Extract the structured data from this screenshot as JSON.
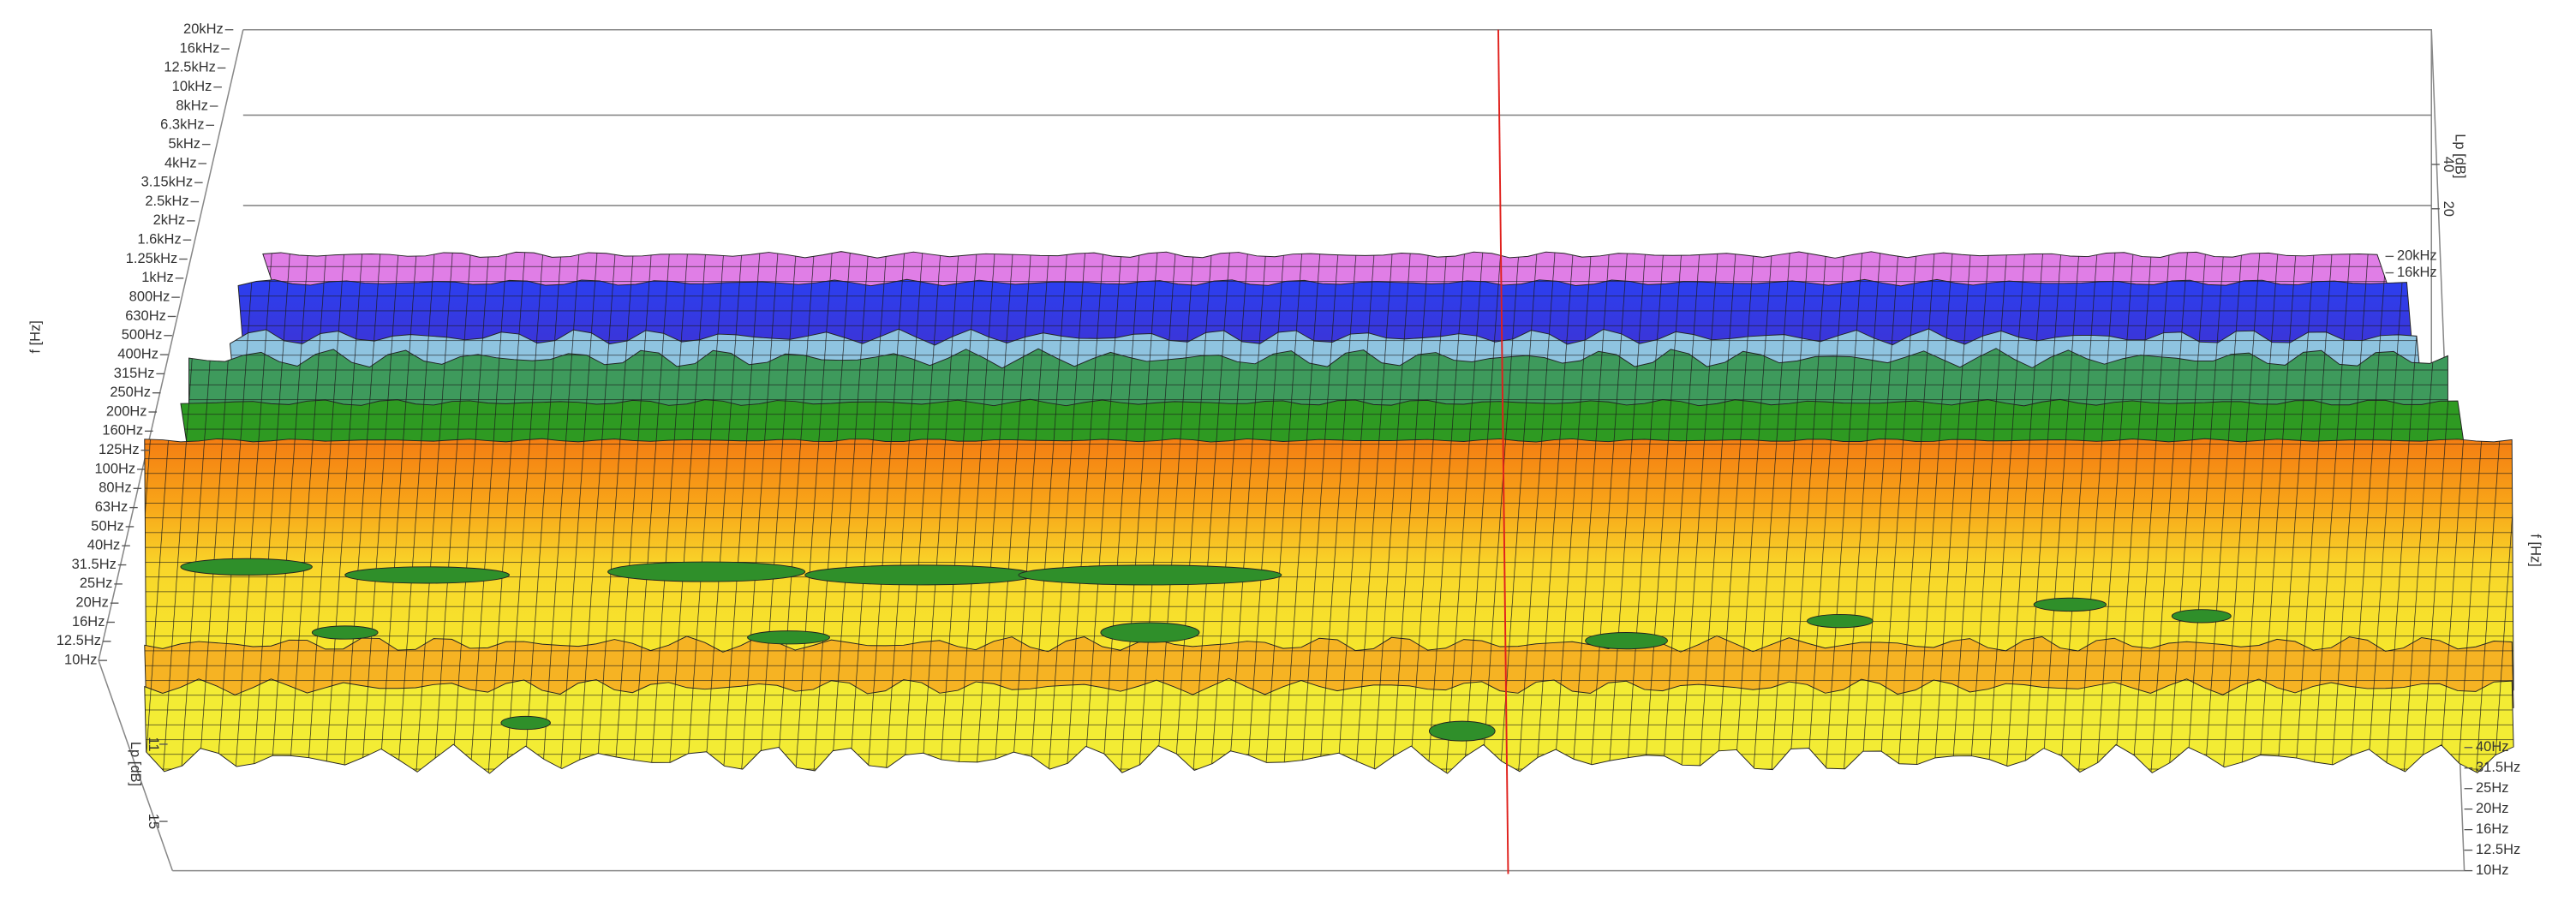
{
  "chart_data": {
    "type": "surface3d",
    "y_label": "f [Hz]",
    "yticks": [
      {
        "value": 20000,
        "label": "20kHz"
      },
      {
        "value": 16000,
        "label": "16kHz"
      },
      {
        "value": 12500,
        "label": "12.5kHz"
      },
      {
        "value": 10000,
        "label": "10kHz"
      },
      {
        "value": 8000,
        "label": "8kHz"
      },
      {
        "value": 6300,
        "label": "6.3kHz"
      },
      {
        "value": 5000,
        "label": "5kHz"
      },
      {
        "value": 4000,
        "label": "4kHz"
      },
      {
        "value": 3150,
        "label": "3.15kHz"
      },
      {
        "value": 2500,
        "label": "2.5kHz"
      },
      {
        "value": 2000,
        "label": "2kHz"
      },
      {
        "value": 1600,
        "label": "1.6kHz"
      },
      {
        "value": 1250,
        "label": "1.25kHz"
      },
      {
        "value": 1000,
        "label": "1kHz"
      },
      {
        "value": 800,
        "label": "800Hz"
      },
      {
        "value": 630,
        "label": "630Hz"
      },
      {
        "value": 500,
        "label": "500Hz"
      },
      {
        "value": 400,
        "label": "400Hz"
      },
      {
        "value": 315,
        "label": "315Hz"
      },
      {
        "value": 250,
        "label": "250Hz"
      },
      {
        "value": 200,
        "label": "200Hz"
      },
      {
        "value": 160,
        "label": "160Hz"
      },
      {
        "value": 125,
        "label": "125Hz"
      },
      {
        "value": 100,
        "label": "100Hz"
      },
      {
        "value": 80,
        "label": "80Hz"
      },
      {
        "value": 63,
        "label": "63Hz"
      },
      {
        "value": 50,
        "label": "50Hz"
      },
      {
        "value": 40,
        "label": "40Hz"
      },
      {
        "value": 31.5,
        "label": "31.5Hz"
      },
      {
        "value": 25,
        "label": "25Hz"
      },
      {
        "value": 20,
        "label": "20Hz"
      },
      {
        "value": 16,
        "label": "16Hz"
      },
      {
        "value": 12.5,
        "label": "12.5Hz"
      },
      {
        "value": 10,
        "label": "10Hz"
      }
    ],
    "z_label": "Lp [dB]",
    "left_zticks": [
      11,
      15
    ],
    "right_z_label": "Lp [dB]",
    "right_zticks": [
      40,
      20
    ],
    "right_back_yticks": [
      {
        "value": 20000,
        "label": "20kHz"
      },
      {
        "value": 16000,
        "label": "16kHz"
      }
    ],
    "right_y_label": "f [Hz]",
    "right_front_yticks": [
      {
        "value": 40,
        "label": "40Hz"
      },
      {
        "value": 31.5,
        "label": "31.5Hz"
      },
      {
        "value": 25,
        "label": "25Hz"
      },
      {
        "value": 20,
        "label": "20Hz"
      },
      {
        "value": 16,
        "label": "16Hz"
      },
      {
        "value": 12.5,
        "label": "12.5Hz"
      },
      {
        "value": 10,
        "label": "10Hz"
      }
    ]
  }
}
